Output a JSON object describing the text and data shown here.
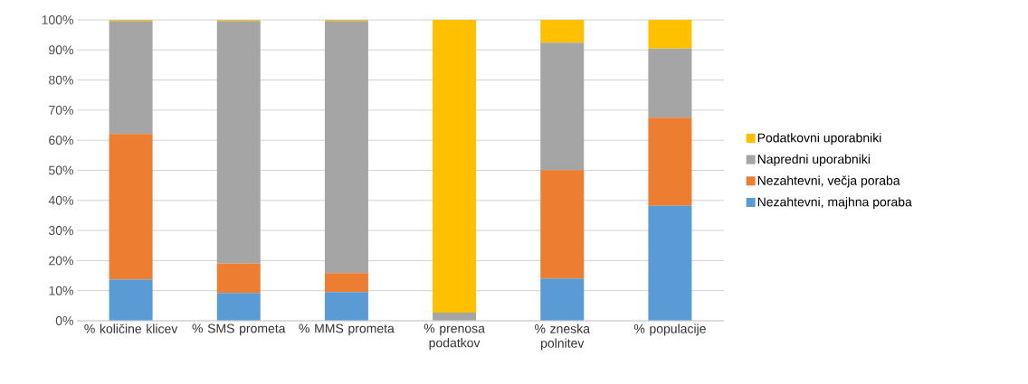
{
  "chart_data": {
    "type": "bar",
    "stacked": true,
    "categories": [
      "% količine klicev",
      "% SMS prometa",
      "% MMS prometa",
      "% prenosa podatkov",
      "% zneska polnitev",
      "% populacije"
    ],
    "series": [
      {
        "name": "Nezahtevni, majhna poraba",
        "color": "#5b9bd5",
        "values": [
          13.7,
          9.2,
          9.5,
          0,
          14.0,
          38.2
        ]
      },
      {
        "name": "Nezahtevni, večja poraba",
        "color": "#ed7d31",
        "values": [
          48.4,
          9.8,
          6.3,
          0,
          36.1,
          29.3
        ]
      },
      {
        "name": "Napredni uporabniki",
        "color": "#a5a5a5",
        "values": [
          37.5,
          80.6,
          83.8,
          2.7,
          42.3,
          23.0
        ]
      },
      {
        "name": "Podatkovni uporabniki",
        "color": "#ffc000",
        "values": [
          0.4,
          0.4,
          0.4,
          97.3,
          7.6,
          9.5
        ]
      }
    ],
    "ylim": [
      0,
      100
    ],
    "yticks": [
      {
        "value": 0,
        "label": "0%"
      },
      {
        "value": 10,
        "label": "10%"
      },
      {
        "value": 20,
        "label": "20%"
      },
      {
        "value": 30,
        "label": "30%"
      },
      {
        "value": 40,
        "label": "40%"
      },
      {
        "value": 50,
        "label": "50%"
      },
      {
        "value": 60,
        "label": "60%"
      },
      {
        "value": 70,
        "label": "70%"
      },
      {
        "value": 80,
        "label": "80%"
      },
      {
        "value": 90,
        "label": "90%"
      },
      {
        "value": 100,
        "label": "100%"
      }
    ],
    "grid": "y",
    "legend": "right"
  }
}
